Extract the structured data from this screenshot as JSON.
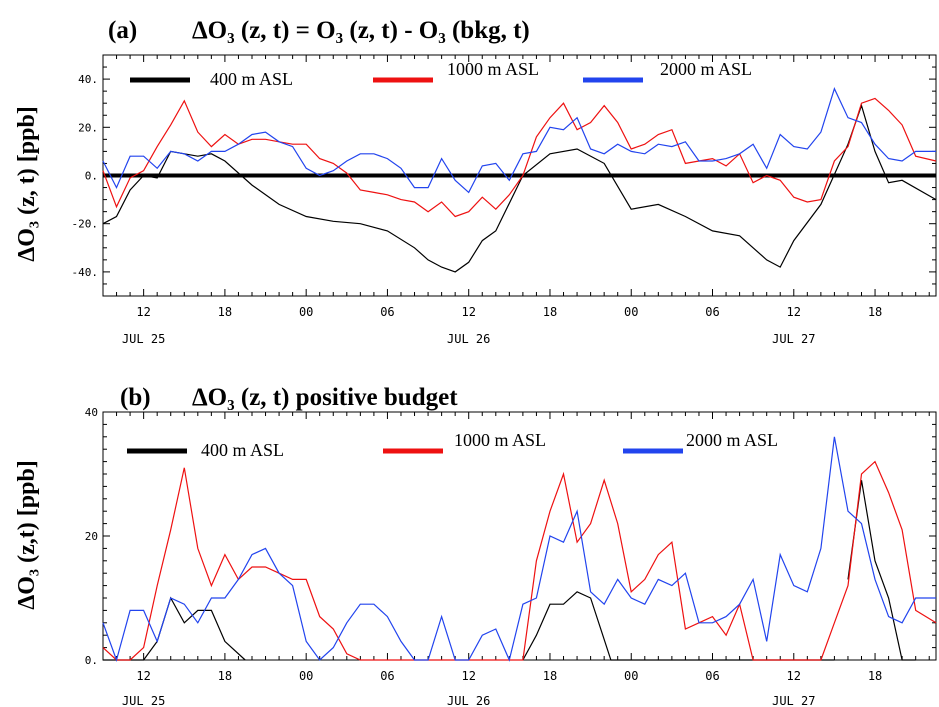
{
  "colors": {
    "black": "#000000",
    "red": "#ee1111",
    "blue": "#2244ee"
  },
  "panels": [
    {
      "title_tag": "(a)",
      "title_text": "ΔO₃ (z, t) = O₃ (z, t) - O₃ (bkg, t)",
      "ylabel": "ΔO₃ (z, t)  [ppb]"
    },
    {
      "title_tag": "(b)",
      "title_text": "ΔO₃ (z, t) positive budget",
      "ylabel": "ΔO₃ (z,t)  [ppb]"
    }
  ],
  "chart_data": [
    {
      "type": "line",
      "title": "(a) ΔO₃ (z, t) = O₃ (z, t) - O₃ (bkg, t)",
      "ylabel": "ΔO₃ (z, t)  [ppb]",
      "ylim": [
        -50,
        50
      ],
      "yticks": [
        "40.",
        "20.",
        "0.",
        "-20.",
        "-40."
      ],
      "xlim": [
        9,
        70.5
      ],
      "xticks": [
        {
          "hour": 12,
          "label": "12"
        },
        {
          "hour": 18,
          "label": "18"
        },
        {
          "hour": 24,
          "label": "00"
        },
        {
          "hour": 30,
          "label": "06"
        },
        {
          "hour": 36,
          "label": "12"
        },
        {
          "hour": 42,
          "label": "18"
        },
        {
          "hour": 48,
          "label": "00"
        },
        {
          "hour": 54,
          "label": "06"
        },
        {
          "hour": 60,
          "label": "12"
        },
        {
          "hour": 66,
          "label": "18"
        }
      ],
      "date_labels": [
        {
          "hour": 12,
          "label": "JUL 25"
        },
        {
          "hour": 36,
          "label": "JUL 26"
        },
        {
          "hour": 60,
          "label": "JUL 27"
        }
      ],
      "zero_line": true,
      "legend": [
        "400 m ASL",
        "1000 m ASL",
        "2000 m ASL"
      ],
      "series": [
        {
          "name": "400 m ASL",
          "color": "black",
          "x": [
            9,
            10,
            11,
            12,
            13,
            14,
            15,
            16,
            17,
            18,
            20,
            22,
            24,
            26,
            28,
            30,
            32,
            33,
            34,
            35,
            36,
            37,
            38,
            40,
            42,
            44,
            46,
            48,
            50,
            52,
            54,
            56,
            57,
            58,
            59,
            60,
            62,
            64,
            65,
            66,
            67,
            68,
            70.5
          ],
          "y": [
            -20,
            -17,
            -6,
            0,
            -1,
            10,
            9,
            8,
            9,
            6,
            -4,
            -12,
            -17,
            -19,
            -20,
            -23,
            -30,
            -35,
            -38,
            -40,
            -36,
            -27,
            -23,
            0,
            9,
            11,
            5,
            -14,
            -12,
            -17,
            -23,
            -25,
            -30,
            -35,
            -38,
            -27,
            -12,
            13,
            29,
            10,
            -3,
            -2,
            -10
          ]
        },
        {
          "name": "1000 m ASL",
          "color": "red",
          "x": [
            9,
            10,
            11,
            12,
            13,
            14,
            15,
            16,
            17,
            18,
            19,
            20,
            21,
            22,
            23,
            24,
            25,
            26,
            27,
            28,
            29,
            30,
            31,
            32,
            33,
            34,
            35,
            36,
            37,
            38,
            39,
            40,
            41,
            42,
            43,
            44,
            45,
            46,
            47,
            48,
            49,
            50,
            51,
            52,
            53,
            54,
            55,
            56,
            57,
            58,
            59,
            60,
            61,
            62,
            63,
            64,
            65,
            66,
            67,
            68,
            69,
            70.5
          ],
          "y": [
            2,
            -13,
            -1,
            2,
            12,
            21,
            31,
            18,
            12,
            17,
            13,
            15,
            15,
            14,
            13,
            13,
            7,
            5,
            1,
            -6,
            -7,
            -8,
            -10,
            -11,
            -15,
            -11,
            -17,
            -15,
            -9,
            -14,
            -8,
            0,
            16,
            24,
            30,
            19,
            22,
            29,
            22,
            11,
            13,
            17,
            19,
            5,
            6,
            7,
            4,
            9,
            -3,
            0,
            -2,
            -9,
            -11,
            -10,
            6,
            12,
            30,
            32,
            27,
            21,
            8,
            6
          ]
        },
        {
          "name": "2000 m ASL",
          "color": "blue",
          "x": [
            9,
            10,
            11,
            12,
            13,
            14,
            15,
            16,
            17,
            18,
            19,
            20,
            21,
            22,
            23,
            24,
            25,
            26,
            27,
            28,
            29,
            30,
            31,
            32,
            33,
            34,
            35,
            36,
            37,
            38,
            39,
            40,
            41,
            42,
            43,
            44,
            45,
            46,
            47,
            48,
            49,
            50,
            51,
            52,
            53,
            54,
            55,
            56,
            57,
            58,
            59,
            60,
            61,
            62,
            63,
            64,
            65,
            66,
            67,
            68,
            69,
            70.5
          ],
          "y": [
            6,
            -5,
            8,
            8,
            3,
            10,
            9,
            6,
            10,
            10,
            13,
            17,
            18,
            14,
            12,
            3,
            0,
            2,
            6,
            9,
            9,
            7,
            3,
            -5,
            -5,
            7,
            -2,
            -7,
            4,
            5,
            -2,
            9,
            10,
            20,
            19,
            24,
            11,
            9,
            13,
            10,
            9,
            13,
            12,
            14,
            6,
            6,
            7,
            9,
            13,
            3,
            17,
            12,
            11,
            18,
            36,
            24,
            22,
            13,
            7,
            6,
            10,
            10
          ]
        }
      ]
    },
    {
      "type": "line",
      "title": "(b) ΔO₃ (z, t) positive budget",
      "ylabel": "ΔO₃ (z,t)  [ppb]",
      "ylim": [
        0,
        40
      ],
      "yticks": [
        "40",
        "20",
        "0."
      ],
      "xlim": [
        9,
        70.5
      ],
      "xticks": [
        {
          "hour": 12,
          "label": "12"
        },
        {
          "hour": 18,
          "label": "18"
        },
        {
          "hour": 24,
          "label": "00"
        },
        {
          "hour": 30,
          "label": "06"
        },
        {
          "hour": 36,
          "label": "12"
        },
        {
          "hour": 42,
          "label": "18"
        },
        {
          "hour": 48,
          "label": "00"
        },
        {
          "hour": 54,
          "label": "06"
        },
        {
          "hour": 60,
          "label": "12"
        },
        {
          "hour": 66,
          "label": "18"
        }
      ],
      "date_labels": [
        {
          "hour": 12,
          "label": "JUL 25"
        },
        {
          "hour": 36,
          "label": "JUL 26"
        },
        {
          "hour": 60,
          "label": "JUL 27"
        }
      ],
      "zero_line": false,
      "legend": [
        "400 m ASL",
        "1000 m ASL",
        "2000 m ASL"
      ],
      "series": [
        {
          "name": "400 m ASL",
          "color": "black",
          "x": [
            9,
            11.5,
            12,
            13,
            14,
            15,
            16,
            17,
            18,
            19.5,
            40,
            41,
            42,
            43,
            44,
            45,
            46.5,
            63,
            64,
            65,
            66,
            67,
            68,
            69
          ],
          "y": [
            0,
            0,
            0,
            3,
            10,
            6,
            8,
            8,
            3,
            0,
            0,
            4,
            9,
            9,
            11,
            10,
            0,
            0,
            13,
            29,
            16,
            10,
            0,
            0
          ],
          "gaps": [
            9,
            17
          ]
        },
        {
          "name": "1000 m ASL",
          "color": "red",
          "x": [
            9,
            10,
            11,
            12,
            13,
            14,
            15,
            16,
            17,
            18,
            19,
            20,
            21,
            22,
            23,
            24,
            25,
            26,
            27,
            28,
            29,
            30,
            31,
            32,
            33,
            34,
            35,
            36,
            37,
            38,
            39,
            40,
            41,
            42,
            43,
            44,
            45,
            46,
            47,
            48,
            49,
            50,
            51,
            52,
            53,
            54,
            55,
            56,
            57,
            58,
            59,
            60,
            61,
            62,
            63,
            64,
            65,
            66,
            67,
            68,
            69,
            70.5
          ],
          "y": [
            2,
            0,
            0,
            2,
            12,
            21,
            31,
            18,
            12,
            17,
            13,
            15,
            15,
            14,
            13,
            13,
            7,
            5,
            1,
            0,
            0,
            0,
            0,
            0,
            0,
            0,
            0,
            0,
            0,
            0,
            0,
            0,
            16,
            24,
            30,
            19,
            22,
            29,
            22,
            11,
            13,
            17,
            19,
            5,
            6,
            7,
            4,
            9,
            0,
            0,
            0,
            0,
            0,
            0,
            6,
            12,
            30,
            32,
            27,
            21,
            8,
            6
          ]
        },
        {
          "name": "2000 m ASL",
          "color": "blue",
          "x": [
            9,
            10,
            11,
            12,
            13,
            14,
            15,
            16,
            17,
            18,
            19,
            20,
            21,
            22,
            23,
            24,
            25,
            26,
            27,
            28,
            29,
            30,
            31,
            32,
            33,
            34,
            35,
            36,
            37,
            38,
            39,
            40,
            41,
            42,
            43,
            44,
            45,
            46,
            47,
            48,
            49,
            50,
            51,
            52,
            53,
            54,
            55,
            56,
            57,
            58,
            59,
            60,
            61,
            62,
            63,
            64,
            65,
            66,
            67,
            68,
            69,
            70.5
          ],
          "y": [
            6,
            0,
            8,
            8,
            3,
            10,
            9,
            6,
            10,
            10,
            13,
            17,
            18,
            14,
            12,
            3,
            0,
            2,
            6,
            9,
            9,
            7,
            3,
            0,
            0,
            7,
            0,
            0,
            4,
            5,
            0,
            9,
            10,
            20,
            19,
            24,
            11,
            9,
            13,
            10,
            9,
            13,
            12,
            14,
            6,
            6,
            7,
            9,
            13,
            3,
            17,
            12,
            11,
            18,
            36,
            24,
            22,
            13,
            7,
            6,
            10,
            10
          ]
        }
      ]
    }
  ]
}
